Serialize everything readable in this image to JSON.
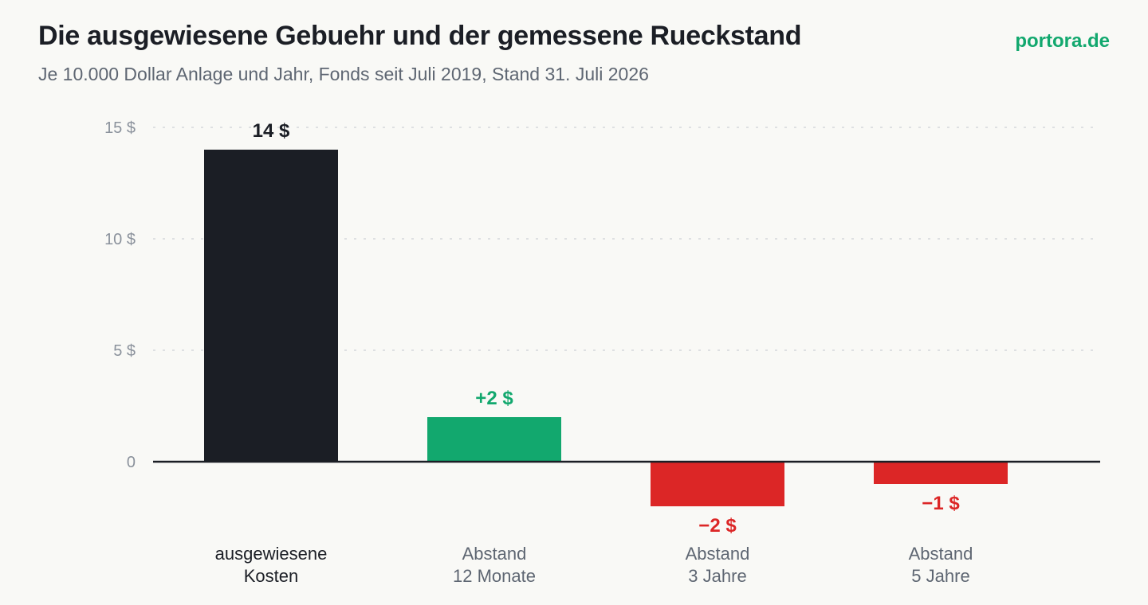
{
  "header": {
    "title": "Die ausgewiesene Gebuehr und der gemessene Rueckstand",
    "subtitle": "Je 10.000 Dollar Anlage und Jahr, Fonds seit Juli 2019, Stand 31. Juli 2026",
    "brand": "portora.de"
  },
  "colors": {
    "text": "#1b1e25",
    "muted": "#5e6672",
    "positive": "#12a86e",
    "negative": "#dc2626",
    "grid": "#d6d8dc",
    "axis": "#1b1e25"
  },
  "chart_data": {
    "type": "bar",
    "title": "Die ausgewiesene Gebuehr und der gemessene Rueckstand",
    "subtitle": "Je 10.000 Dollar Anlage und Jahr, Fonds seit Juli 2019, Stand 31. Juli 2026",
    "categories": [
      [
        "ausgewiesene",
        "Kosten"
      ],
      [
        "Abstand",
        "12 Monate"
      ],
      [
        "Abstand",
        "3 Jahre"
      ],
      [
        "Abstand",
        "5 Jahre"
      ]
    ],
    "values": [
      14,
      2,
      -2,
      -1
    ],
    "value_labels": [
      "14 $",
      "+2 $",
      "−2 $",
      "−1 $"
    ],
    "bar_colors": [
      "#1b1e25",
      "#12a86e",
      "#dc2626",
      "#dc2626"
    ],
    "label_colors": [
      "#1b1e25",
      "#12a86e",
      "#dc2626",
      "#dc2626"
    ],
    "category_label_colors": [
      "#1b1e25",
      "#5e6672",
      "#5e6672",
      "#5e6672"
    ],
    "yticks": [
      0,
      5,
      10,
      15
    ],
    "ytick_labels": [
      "0",
      "5 $",
      "10 $",
      "15 $"
    ],
    "ylim": [
      -2,
      15
    ],
    "grid": true,
    "xlabel": "",
    "ylabel": ""
  }
}
